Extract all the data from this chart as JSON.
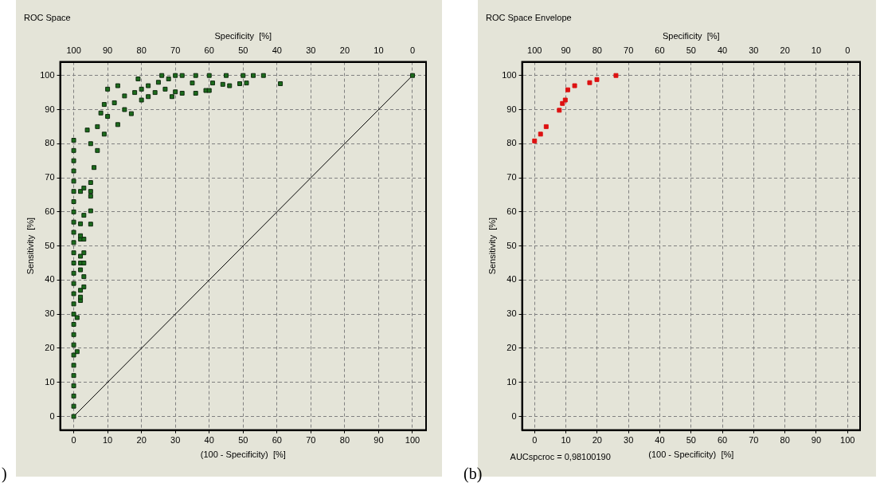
{
  "chart_data": [
    {
      "type": "scatter",
      "title": "ROC Space",
      "xlabel": "(100 - Specificity)  [%]",
      "ylabel": "Sensitivity  [%]",
      "x2label": "Specificity  [%]",
      "xlim": [
        -4,
        104
      ],
      "ylim": [
        -4,
        104
      ],
      "x2lim": [
        104,
        -4
      ],
      "xticks": [
        0,
        10,
        20,
        30,
        40,
        50,
        60,
        70,
        80,
        90,
        100
      ],
      "yticks": [
        0,
        10,
        20,
        30,
        40,
        50,
        60,
        70,
        80,
        90,
        100
      ],
      "x2ticks": [
        100,
        90,
        80,
        70,
        60,
        50,
        40,
        30,
        20,
        10,
        0
      ],
      "grid": true,
      "legend": false,
      "annotations": [
        ")"
      ],
      "series": [
        {
          "color": "#1b6b1b",
          "marker": "square",
          "x": [
            0,
            0,
            0,
            0,
            0,
            0,
            0,
            0,
            0,
            0,
            0,
            0,
            0,
            0,
            0,
            0,
            0,
            0,
            0,
            0,
            0,
            0,
            0,
            0,
            0,
            0,
            0,
            0,
            1,
            1,
            2,
            2,
            2,
            3,
            3,
            2,
            2,
            3,
            2,
            3,
            2,
            3,
            2,
            2,
            3,
            5,
            5,
            5,
            5,
            5,
            2,
            3,
            4,
            8,
            9,
            10,
            13,
            19,
            26,
            6,
            7,
            9,
            13,
            17,
            20,
            22,
            29,
            30,
            5,
            7,
            10,
            12,
            15,
            15,
            18,
            20,
            22,
            25,
            28,
            30,
            24,
            27,
            32,
            36,
            40,
            45,
            50,
            53,
            56,
            39,
            44,
            49,
            61,
            35,
            41,
            46,
            51,
            32,
            36,
            40,
            100
          ],
          "values": [
            0,
            3,
            6,
            9,
            12,
            15,
            18,
            21,
            24,
            27,
            30,
            33,
            36,
            39,
            42,
            45,
            48,
            51,
            54,
            57,
            60,
            63,
            66,
            69,
            72,
            75,
            78,
            81,
            19,
            29,
            34,
            35,
            37,
            38,
            41,
            43,
            45,
            45,
            47,
            48,
            52,
            52,
            53,
            56.5,
            59,
            56.4,
            60.3,
            64.6,
            66,
            68.6,
            66,
            67,
            84,
            89,
            91.5,
            96,
            97,
            99,
            100,
            73,
            78,
            82.8,
            85.6,
            88.8,
            92.8,
            93.8,
            93.8,
            95.2,
            80,
            85,
            88,
            92,
            94,
            90,
            95,
            96,
            97,
            98,
            99,
            100,
            95,
            96,
            100,
            100,
            100,
            100,
            100,
            100,
            100,
            95.6,
            97.4,
            97.6,
            97.6,
            97.8,
            97.8,
            97,
            97.8,
            94.8,
            94.8,
            95.6,
            100
          ]
        },
        {
          "type": "line",
          "color": "#000000",
          "marker": "none",
          "x": [
            0,
            100
          ],
          "values": [
            0,
            100
          ]
        }
      ]
    },
    {
      "type": "scatter",
      "title": "ROC Space Envelope",
      "xlabel": "(100 - Specificity)  [%]",
      "ylabel": "Sensitivity  [%]",
      "x2label": "Specificity  [%]",
      "xlim": [
        -4,
        104
      ],
      "ylim": [
        -4,
        104
      ],
      "x2lim": [
        104,
        -4
      ],
      "xticks": [
        0,
        10,
        20,
        30,
        40,
        50,
        60,
        70,
        80,
        90,
        100
      ],
      "yticks": [
        0,
        10,
        20,
        30,
        40,
        50,
        60,
        70,
        80,
        90,
        100
      ],
      "x2ticks": [
        100,
        90,
        80,
        70,
        60,
        50,
        40,
        30,
        20,
        10,
        0
      ],
      "grid": true,
      "legend": false,
      "annotations": [
        "AUCspcroc = 0,98100190",
        "(b)"
      ],
      "series": [
        {
          "color": "#dd1111",
          "marker": "square",
          "x": [
            0,
            1.9,
            3.7,
            7.9,
            8.9,
            9.8,
            10.6,
            12.8,
            17.6,
            19.9,
            26
          ],
          "values": [
            80.8,
            82.8,
            85,
            89.8,
            91.8,
            92.8,
            95.8,
            97,
            97.9,
            98.8,
            100
          ]
        }
      ]
    }
  ]
}
